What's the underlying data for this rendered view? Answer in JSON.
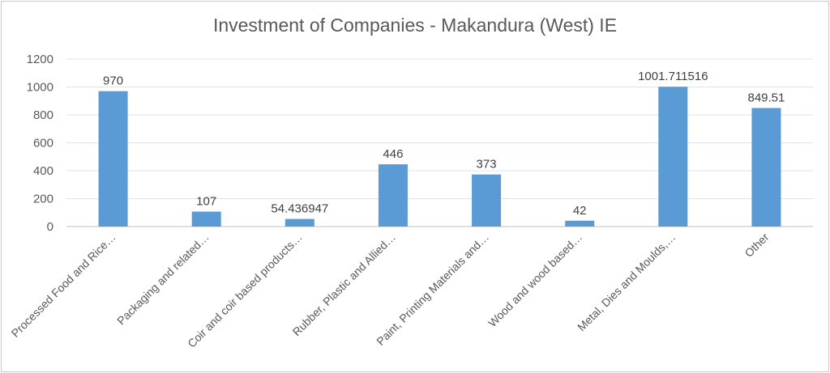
{
  "chart_data": {
    "type": "bar",
    "title": "Investment of Companies - Makandura (West) IE",
    "xlabel": "",
    "ylabel": "",
    "categories": [
      "Processed Food and Rice…",
      "Packaging and related…",
      "Coir and coir based products…",
      "Rubber, Plastic and Allied…",
      "Paint, Printing Materials and…",
      "Wood and wood based…",
      "Metal, Dies and Moulds,…",
      "Other"
    ],
    "values": [
      970,
      107,
      54.436947,
      446,
      373,
      42,
      1001.711516,
      849.51
    ],
    "data_labels": [
      "970",
      "107",
      "54.436947",
      "446",
      "373",
      "42",
      "1001.711516",
      "849.51"
    ],
    "ylim": [
      0,
      1200
    ],
    "yticks": [
      0,
      200,
      400,
      600,
      800,
      1000,
      1200
    ],
    "grid": true,
    "legend": "none",
    "bar_color": "#5b9bd5",
    "grid_color": "#d9e6f2"
  }
}
